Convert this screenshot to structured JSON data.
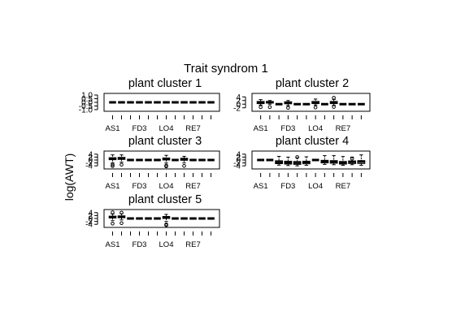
{
  "figure": {
    "title": "Trait syndrom 1",
    "ylabel": "log(AWT)"
  },
  "chart_data": [
    {
      "type": "boxplot",
      "title": "plant cluster 1",
      "ylim": [
        -1.0,
        1.0
      ],
      "yticks": [
        "-1.0",
        "-0.5",
        "0.0",
        "0.5",
        "1.0"
      ],
      "ytick_values": [
        -1.0,
        -0.5,
        0.0,
        0.5,
        1.0
      ],
      "xtick_labels": [
        "AS1",
        "FD3",
        "LO4",
        "RE7"
      ],
      "xtick_positions": [
        1,
        4,
        7,
        10
      ],
      "n_boxes": 12,
      "boxes": [
        {
          "med": 0,
          "q1": 0,
          "q3": 0,
          "lo": 0,
          "hi": 0,
          "out": []
        },
        {
          "med": 0,
          "q1": 0,
          "q3": 0,
          "lo": 0,
          "hi": 0,
          "out": []
        },
        {
          "med": 0,
          "q1": 0,
          "q3": 0,
          "lo": 0,
          "hi": 0,
          "out": []
        },
        {
          "med": 0,
          "q1": 0,
          "q3": 0,
          "lo": 0,
          "hi": 0,
          "out": []
        },
        {
          "med": 0,
          "q1": 0,
          "q3": 0,
          "lo": 0,
          "hi": 0,
          "out": []
        },
        {
          "med": 0,
          "q1": 0,
          "q3": 0,
          "lo": 0,
          "hi": 0,
          "out": []
        },
        {
          "med": 0,
          "q1": 0,
          "q3": 0,
          "lo": 0,
          "hi": 0,
          "out": []
        },
        {
          "med": 0,
          "q1": 0,
          "q3": 0,
          "lo": 0,
          "hi": 0,
          "out": []
        },
        {
          "med": 0,
          "q1": 0,
          "q3": 0,
          "lo": 0,
          "hi": 0,
          "out": []
        },
        {
          "med": 0,
          "q1": 0,
          "q3": 0,
          "lo": 0,
          "hi": 0,
          "out": []
        },
        {
          "med": 0,
          "q1": 0,
          "q3": 0,
          "lo": 0,
          "hi": 0,
          "out": []
        },
        {
          "med": 0,
          "q1": 0,
          "q3": 0,
          "lo": 0,
          "hi": 0,
          "out": []
        }
      ]
    },
    {
      "type": "boxplot",
      "title": "plant cluster 2",
      "ylim": [
        -3.0,
        5.0
      ],
      "yticks": [
        "-2",
        "0",
        "2",
        "4"
      ],
      "ytick_values": [
        -2,
        0,
        2,
        4
      ],
      "xtick_labels": [
        "AS1",
        "FD3",
        "LO4",
        "RE7"
      ],
      "xtick_positions": [
        1,
        4,
        7,
        10
      ],
      "n_boxes": 12,
      "boxes": [
        {
          "med": 0.8,
          "q1": 0.3,
          "q3": 1.5,
          "lo": -0.5,
          "hi": 2.5,
          "out": [
            -1.6
          ]
        },
        {
          "med": 1.0,
          "q1": 0.6,
          "q3": 1.5,
          "lo": 0.0,
          "hi": 2.0,
          "out": [
            -1.6
          ]
        },
        {
          "med": 0,
          "q1": 0,
          "q3": 0,
          "lo": 0,
          "hi": 0,
          "out": []
        },
        {
          "med": 0.8,
          "q1": 0.2,
          "q3": 1.3,
          "lo": -0.8,
          "hi": 2.0,
          "out": [
            -2.0
          ]
        },
        {
          "med": 0,
          "q1": 0,
          "q3": 0,
          "lo": 0,
          "hi": 0,
          "out": []
        },
        {
          "med": 0,
          "q1": 0,
          "q3": 0,
          "lo": 0,
          "hi": 0,
          "out": []
        },
        {
          "med": 0.8,
          "q1": 0.3,
          "q3": 1.5,
          "lo": -0.5,
          "hi": 2.8,
          "out": [
            -1.8
          ]
        },
        {
          "med": 0,
          "q1": 0,
          "q3": 0,
          "lo": 0,
          "hi": 0,
          "out": []
        },
        {
          "med": 0.8,
          "q1": 0.3,
          "q3": 1.5,
          "lo": -0.6,
          "hi": 2.6,
          "out": [
            -1.5,
            3.5
          ]
        },
        {
          "med": 0,
          "q1": 0,
          "q3": 0,
          "lo": 0,
          "hi": 0,
          "out": []
        },
        {
          "med": 0,
          "q1": 0,
          "q3": 0,
          "lo": 0,
          "hi": 0,
          "out": []
        },
        {
          "med": 0,
          "q1": 0,
          "q3": 0,
          "lo": 0,
          "hi": 0,
          "out": []
        }
      ]
    },
    {
      "type": "boxplot",
      "title": "plant cluster 3",
      "ylim": [
        -5.0,
        5.0
      ],
      "yticks": [
        "-4",
        "-2",
        "0",
        "2",
        "4"
      ],
      "ytick_values": [
        -4,
        -2,
        0,
        2,
        4
      ],
      "xtick_labels": [
        "AS1",
        "FD3",
        "LO4",
        "RE7"
      ],
      "xtick_positions": [
        1,
        4,
        7,
        10
      ],
      "n_boxes": 12,
      "boxes": [
        {
          "med": 0.8,
          "q1": 0.2,
          "q3": 1.6,
          "lo": -2.0,
          "hi": 3.5,
          "out": [
            -3.2,
            -4.2
          ]
        },
        {
          "med": 1.0,
          "q1": 0.4,
          "q3": 1.8,
          "lo": -1.5,
          "hi": 3.5,
          "out": [
            -3.2
          ]
        },
        {
          "med": 0,
          "q1": 0,
          "q3": 0,
          "lo": 0,
          "hi": 0,
          "out": []
        },
        {
          "med": 0,
          "q1": 0,
          "q3": 0,
          "lo": 0,
          "hi": 0,
          "out": []
        },
        {
          "med": 0,
          "q1": 0,
          "q3": 0,
          "lo": 0,
          "hi": 0,
          "out": []
        },
        {
          "med": 0,
          "q1": 0,
          "q3": 0,
          "lo": 0,
          "hi": 0,
          "out": []
        },
        {
          "med": 0.6,
          "q1": 0.0,
          "q3": 1.4,
          "lo": -2.0,
          "hi": 3.2,
          "out": [
            -3.8,
            -4.4
          ]
        },
        {
          "med": 0,
          "q1": 0,
          "q3": 0,
          "lo": 0,
          "hi": 0,
          "out": []
        },
        {
          "med": 0.5,
          "q1": -0.2,
          "q3": 1.2,
          "lo": -2.0,
          "hi": 2.5,
          "out": [
            -4.0
          ]
        },
        {
          "med": 0,
          "q1": 0,
          "q3": 0,
          "lo": 0,
          "hi": 0,
          "out": []
        },
        {
          "med": 0,
          "q1": 0,
          "q3": 0,
          "lo": 0,
          "hi": 0,
          "out": []
        },
        {
          "med": 0,
          "q1": 0,
          "q3": 0,
          "lo": 0,
          "hi": 0,
          "out": []
        }
      ]
    },
    {
      "type": "boxplot",
      "title": "plant cluster 4",
      "ylim": [
        -5.0,
        5.0
      ],
      "yticks": [
        "-4",
        "-2",
        "0",
        "2",
        "4"
      ],
      "ytick_values": [
        -4,
        -2,
        0,
        2,
        4
      ],
      "xtick_labels": [
        "AS1",
        "FD3",
        "LO4",
        "RE7"
      ],
      "xtick_positions": [
        1,
        4,
        7,
        10
      ],
      "n_boxes": 12,
      "boxes": [
        {
          "med": 0,
          "q1": 0,
          "q3": 0,
          "lo": 0,
          "hi": 0,
          "out": []
        },
        {
          "med": 0,
          "q1": 0,
          "q3": 0,
          "lo": 0,
          "hi": 0,
          "out": []
        },
        {
          "med": -1.5,
          "q1": -2.5,
          "q3": -0.5,
          "lo": -3.5,
          "hi": 2.5,
          "out": []
        },
        {
          "med": -1.8,
          "q1": -2.8,
          "q3": -0.8,
          "lo": -3.8,
          "hi": 2.0,
          "out": []
        },
        {
          "med": -2.0,
          "q1": -3.0,
          "q3": -1.0,
          "lo": -4.0,
          "hi": 1.5,
          "out": [
            2.0
          ]
        },
        {
          "med": -1.6,
          "q1": -2.6,
          "q3": -0.8,
          "lo": -3.6,
          "hi": 2.2,
          "out": []
        },
        {
          "med": 0,
          "q1": 0,
          "q3": 0,
          "lo": 0,
          "hi": 0,
          "out": []
        },
        {
          "med": -1.0,
          "q1": -2.0,
          "q3": -0.2,
          "lo": -3.0,
          "hi": 3.0,
          "out": []
        },
        {
          "med": -1.2,
          "q1": -2.2,
          "q3": -0.4,
          "lo": -3.2,
          "hi": 3.0,
          "out": []
        },
        {
          "med": -1.8,
          "q1": -2.8,
          "q3": -1.0,
          "lo": -3.6,
          "hi": 2.4,
          "out": []
        },
        {
          "med": -1.4,
          "q1": -2.4,
          "q3": -0.6,
          "lo": -3.2,
          "hi": 2.0,
          "out": [
            1.0
          ]
        },
        {
          "med": -1.2,
          "q1": -2.4,
          "q3": -0.4,
          "lo": -3.6,
          "hi": 3.5,
          "out": []
        }
      ]
    },
    {
      "type": "boxplot",
      "title": "plant cluster 5",
      "ylim": [
        -5.0,
        5.0
      ],
      "yticks": [
        "-4",
        "-2",
        "0",
        "2",
        "4"
      ],
      "ytick_values": [
        -4,
        -2,
        0,
        2,
        4
      ],
      "xtick_labels": [
        "AS1",
        "FD3",
        "LO4",
        "RE7"
      ],
      "xtick_positions": [
        1,
        4,
        7,
        10
      ],
      "n_boxes": 12,
      "boxes": [
        {
          "med": 1.0,
          "q1": 0.3,
          "q3": 1.6,
          "lo": -1.5,
          "hi": 3.0,
          "out": [
            -3.5,
            4.2
          ]
        },
        {
          "med": 1.2,
          "q1": 0.5,
          "q3": 1.8,
          "lo": -1.0,
          "hi": 3.2,
          "out": [
            -3.2,
            4.0
          ]
        },
        {
          "med": 0,
          "q1": 0,
          "q3": 0,
          "lo": 0,
          "hi": 0,
          "out": []
        },
        {
          "med": 0,
          "q1": 0,
          "q3": 0,
          "lo": 0,
          "hi": 0,
          "out": []
        },
        {
          "med": 0,
          "q1": 0,
          "q3": 0,
          "lo": 0,
          "hi": 0,
          "out": []
        },
        {
          "med": 0,
          "q1": 0,
          "q3": 0,
          "lo": 0,
          "hi": 0,
          "out": []
        },
        {
          "med": 0.6,
          "q1": 0.0,
          "q3": 1.4,
          "lo": -2.0,
          "hi": 2.8,
          "out": [
            -4.0,
            -4.6
          ]
        },
        {
          "med": 0,
          "q1": 0,
          "q3": 0,
          "lo": 0,
          "hi": 0,
          "out": []
        },
        {
          "med": 0,
          "q1": 0,
          "q3": 0,
          "lo": 0,
          "hi": 0,
          "out": []
        },
        {
          "med": 0,
          "q1": 0,
          "q3": 0,
          "lo": 0,
          "hi": 0,
          "out": []
        },
        {
          "med": 0,
          "q1": 0,
          "q3": 0,
          "lo": 0,
          "hi": 0,
          "out": []
        },
        {
          "med": 0,
          "q1": 0,
          "q3": 0,
          "lo": 0,
          "hi": 0,
          "out": []
        }
      ]
    }
  ]
}
